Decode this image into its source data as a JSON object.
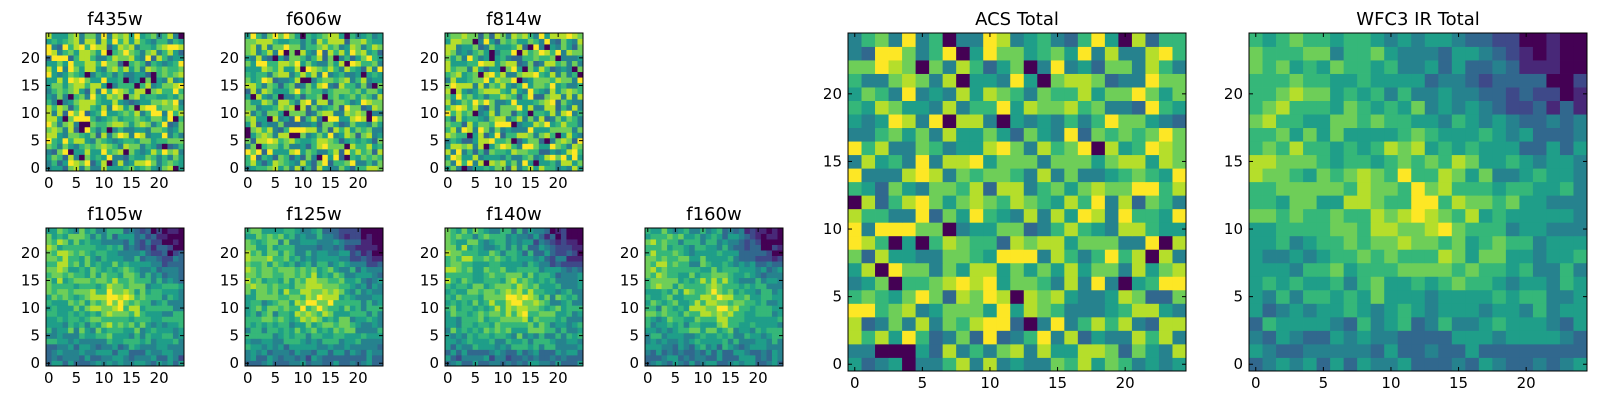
{
  "chart_data": [
    {
      "type": "heatmap",
      "title": "f435w",
      "grid": [
        25,
        25
      ],
      "x_ticks": [
        0,
        5,
        10,
        15,
        20
      ],
      "y_ticks": [
        0,
        5,
        10,
        15,
        20
      ],
      "xlim": [
        -0.5,
        24.5
      ],
      "ylim": [
        -0.5,
        24.5
      ],
      "colormap": "viridis",
      "pattern": "noise",
      "seed": 11
    },
    {
      "type": "heatmap",
      "title": "f606w",
      "grid": [
        25,
        25
      ],
      "x_ticks": [
        0,
        5,
        10,
        15,
        20
      ],
      "y_ticks": [
        0,
        5,
        10,
        15,
        20
      ],
      "xlim": [
        -0.5,
        24.5
      ],
      "ylim": [
        -0.5,
        24.5
      ],
      "colormap": "viridis",
      "pattern": "noise",
      "seed": 23
    },
    {
      "type": "heatmap",
      "title": "f814w",
      "grid": [
        25,
        25
      ],
      "x_ticks": [
        0,
        5,
        10,
        15,
        20
      ],
      "y_ticks": [
        0,
        5,
        10,
        15,
        20
      ],
      "xlim": [
        -0.5,
        24.5
      ],
      "ylim": [
        -0.5,
        24.5
      ],
      "colormap": "viridis",
      "pattern": "noise",
      "seed": 37
    },
    {
      "type": "heatmap",
      "title": "f105w",
      "grid": [
        25,
        25
      ],
      "x_ticks": [
        0,
        5,
        10,
        15,
        20
      ],
      "y_ticks": [
        0,
        5,
        10,
        15,
        20
      ],
      "xlim": [
        -0.5,
        24.5
      ],
      "ylim": [
        -0.5,
        24.5
      ],
      "colormap": "viridis",
      "pattern": "smooth",
      "seed": 41
    },
    {
      "type": "heatmap",
      "title": "f125w",
      "grid": [
        25,
        25
      ],
      "x_ticks": [
        0,
        5,
        10,
        15,
        20
      ],
      "y_ticks": [
        0,
        5,
        10,
        15,
        20
      ],
      "xlim": [
        -0.5,
        24.5
      ],
      "ylim": [
        -0.5,
        24.5
      ],
      "colormap": "viridis",
      "pattern": "smooth",
      "seed": 53
    },
    {
      "type": "heatmap",
      "title": "f140w",
      "grid": [
        25,
        25
      ],
      "x_ticks": [
        0,
        5,
        10,
        15,
        20
      ],
      "y_ticks": [
        0,
        5,
        10,
        15,
        20
      ],
      "xlim": [
        -0.5,
        24.5
      ],
      "ylim": [
        -0.5,
        24.5
      ],
      "colormap": "viridis",
      "pattern": "smooth",
      "seed": 67
    },
    {
      "type": "heatmap",
      "title": "f160w",
      "grid": [
        25,
        25
      ],
      "x_ticks": [
        0,
        5,
        10,
        15,
        20
      ],
      "y_ticks": [
        0,
        5,
        10,
        15,
        20
      ],
      "xlim": [
        -0.5,
        24.5
      ],
      "ylim": [
        -0.5,
        24.5
      ],
      "colormap": "viridis",
      "pattern": "smooth",
      "seed": 79
    },
    {
      "type": "heatmap",
      "title": "ACS Total",
      "grid": [
        25,
        25
      ],
      "x_ticks": [
        0,
        5,
        10,
        15,
        20
      ],
      "y_ticks": [
        0,
        5,
        10,
        15,
        20
      ],
      "xlim": [
        -0.5,
        24.5
      ],
      "ylim": [
        -0.5,
        24.5
      ],
      "colormap": "viridis",
      "pattern": "noise",
      "seed": 97
    },
    {
      "type": "heatmap",
      "title": "WFC3 IR Total",
      "grid": [
        25,
        25
      ],
      "x_ticks": [
        0,
        5,
        10,
        15,
        20
      ],
      "y_ticks": [
        0,
        5,
        10,
        15,
        20
      ],
      "xlim": [
        -0.5,
        24.5
      ],
      "ylim": [
        -0.5,
        24.5
      ],
      "colormap": "viridis",
      "pattern": "smooth",
      "seed": 101
    }
  ],
  "colors": {
    "viridis": [
      "#440154",
      "#482878",
      "#3e4989",
      "#31688e",
      "#26828e",
      "#1f9e89",
      "#35b779",
      "#6ece58",
      "#b5de2b",
      "#fde725"
    ],
    "axis": "#000000",
    "background": "#ffffff"
  }
}
